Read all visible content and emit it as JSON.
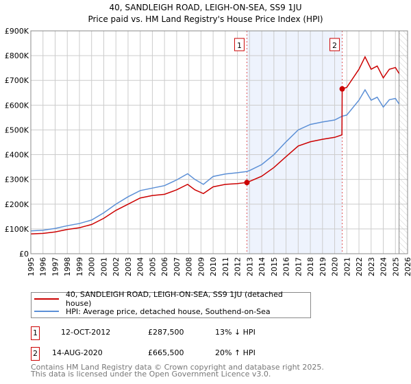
{
  "chart_data": {
    "type": "line",
    "title": "40, SANDLEIGH ROAD, LEIGH-ON-SEA, SS9 1JU",
    "subtitle": "Price paid vs. HM Land Registry's House Price Index (HPI)",
    "xlim": [
      1995,
      2026
    ],
    "ylim": [
      0,
      900000
    ],
    "x_ticks": [
      "1995",
      "1996",
      "1997",
      "1998",
      "1999",
      "2000",
      "2001",
      "2002",
      "2003",
      "2004",
      "2005",
      "2006",
      "2007",
      "2008",
      "2009",
      "2010",
      "2011",
      "2012",
      "2013",
      "2014",
      "2015",
      "2016",
      "2017",
      "2018",
      "2019",
      "2020",
      "2021",
      "2022",
      "2023",
      "2024",
      "2025",
      "2026"
    ],
    "y_ticks": [
      {
        "v": 0,
        "l": "£0"
      },
      {
        "v": 100000,
        "l": "£100K"
      },
      {
        "v": 200000,
        "l": "£200K"
      },
      {
        "v": 300000,
        "l": "£300K"
      },
      {
        "v": 400000,
        "l": "£400K"
      },
      {
        "v": 500000,
        "l": "£500K"
      },
      {
        "v": 600000,
        "l": "£600K"
      },
      {
        "v": 700000,
        "l": "£700K"
      },
      {
        "v": 800000,
        "l": "£800K"
      },
      {
        "v": 900000,
        "l": "£900K"
      }
    ],
    "grid": true,
    "series": [
      {
        "name": "40, SANDLEIGH ROAD, LEIGH-ON-SEA, SS9 1JU (detached house)",
        "color": "#cc0000",
        "x": [
          1995,
          1996,
          1997,
          1998,
          1999,
          2000,
          2001,
          2002,
          2003,
          2004,
          2005,
          2006,
          2007,
          2007.9,
          2008.5,
          2009.2,
          2010,
          2011,
          2012,
          2012.78,
          2013,
          2014,
          2015,
          2016,
          2017,
          2018,
          2019,
          2020,
          2020.6,
          2020.62,
          2021,
          2022,
          2022.5,
          2023,
          2023.5,
          2024,
          2024.5,
          2025,
          2025.3
        ],
        "y": [
          80000,
          82000,
          88000,
          98000,
          105000,
          118000,
          143000,
          175000,
          200000,
          225000,
          235000,
          240000,
          258000,
          280000,
          258000,
          243000,
          270000,
          280000,
          283000,
          287500,
          292000,
          313000,
          348000,
          392000,
          435000,
          452000,
          462000,
          470000,
          480000,
          665500,
          672000,
          745000,
          795000,
          745000,
          758000,
          710000,
          745000,
          752000,
          728000
        ]
      },
      {
        "name": "HPI: Average price, detached house, Southend-on-Sea",
        "color": "#5b8fd6",
        "x": [
          1995,
          1996,
          1997,
          1998,
          1999,
          2000,
          2001,
          2002,
          2003,
          2004,
          2005,
          2006,
          2007,
          2007.9,
          2008.5,
          2009.2,
          2010,
          2011,
          2012,
          2012.78,
          2013,
          2014,
          2015,
          2016,
          2017,
          2018,
          2019,
          2020,
          2020.6,
          2021,
          2022,
          2022.5,
          2023,
          2023.5,
          2024,
          2024.5,
          2025,
          2025.3
        ],
        "y": [
          92000,
          95000,
          102000,
          113000,
          122000,
          136000,
          165000,
          200000,
          230000,
          255000,
          265000,
          275000,
          298000,
          323000,
          300000,
          280000,
          312000,
          322000,
          327000,
          332000,
          336000,
          360000,
          400000,
          452000,
          500000,
          522000,
          532000,
          540000,
          555000,
          560000,
          620000,
          662000,
          620000,
          632000,
          592000,
          622000,
          627000,
          605000
        ]
      }
    ],
    "sales": [
      {
        "n": "1",
        "x": 2012.78,
        "y": 287500
      },
      {
        "n": "2",
        "x": 2020.62,
        "y": 665500
      }
    ],
    "hatch_from": 2025.3
  },
  "legend": [
    "40, SANDLEIGH ROAD, LEIGH-ON-SEA, SS9 1JU (detached house)",
    "HPI: Average price, detached house, Southend-on-Sea"
  ],
  "transactions": [
    {
      "n": "1",
      "date": "12-OCT-2012",
      "price": "£287,500",
      "hpi": "13% ↓ HPI"
    },
    {
      "n": "2",
      "date": "14-AUG-2020",
      "price": "£665,500",
      "hpi": "20% ↑ HPI"
    }
  ],
  "footer": [
    "Contains HM Land Registry data © Crown copyright and database right 2025.",
    "This data is licensed under the Open Government Licence v3.0."
  ]
}
